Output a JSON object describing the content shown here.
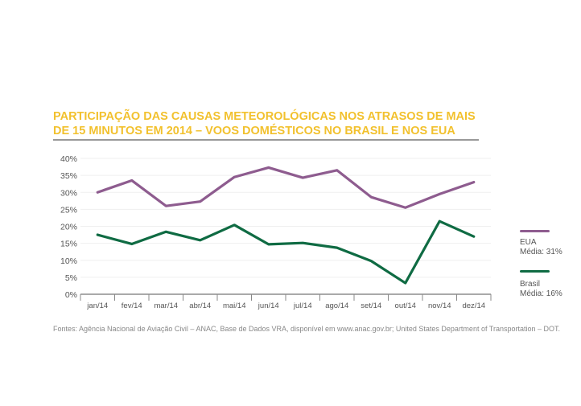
{
  "title_line1": "PARTICIPAÇÃO DAS CAUSAS METEOROLÓGICAS NOS ATRASOS DE MAIS",
  "title_line2": "DE 15 MINUTOS EM 2014 – VOOS DOMÉSTICOS NO BRASIL E NOS EUA",
  "source": "Fontes: Agência Nacional de Aviação Civil – ANAC, Base de Dados VRA, disponível em www.anac.gov.br; United States Department of Transportation – DOT.",
  "colors": {
    "eua": "#8e5c8f",
    "brasil": "#0f6b43",
    "title": "#f2c12e"
  },
  "chart_data": {
    "type": "line",
    "categories": [
      "jan/14",
      "fev/14",
      "mar/14",
      "abr/14",
      "mai/14",
      "jun/14",
      "jul/14",
      "ago/14",
      "set/14",
      "out/14",
      "nov/14",
      "dez/14"
    ],
    "ylim": [
      0,
      40
    ],
    "yticks": [
      "0%",
      "5%",
      "10%",
      "15%",
      "20%",
      "25%",
      "30%",
      "35%",
      "40%"
    ],
    "grid": true,
    "legend_position": "right",
    "series": [
      {
        "name": "EUA",
        "note": "Média: 31%",
        "color": "#8e5c8f",
        "values": [
          30,
          33.5,
          26,
          27.3,
          34.5,
          37.3,
          34.3,
          36.5,
          28.6,
          25.5,
          29.5,
          33
        ]
      },
      {
        "name": "Brasil",
        "note": "Média: 16%",
        "color": "#0f6b43",
        "values": [
          17.5,
          14.8,
          18.4,
          15.9,
          20.4,
          14.7,
          15.1,
          13.7,
          9.8,
          3.3,
          21.5,
          17
        ]
      }
    ]
  }
}
